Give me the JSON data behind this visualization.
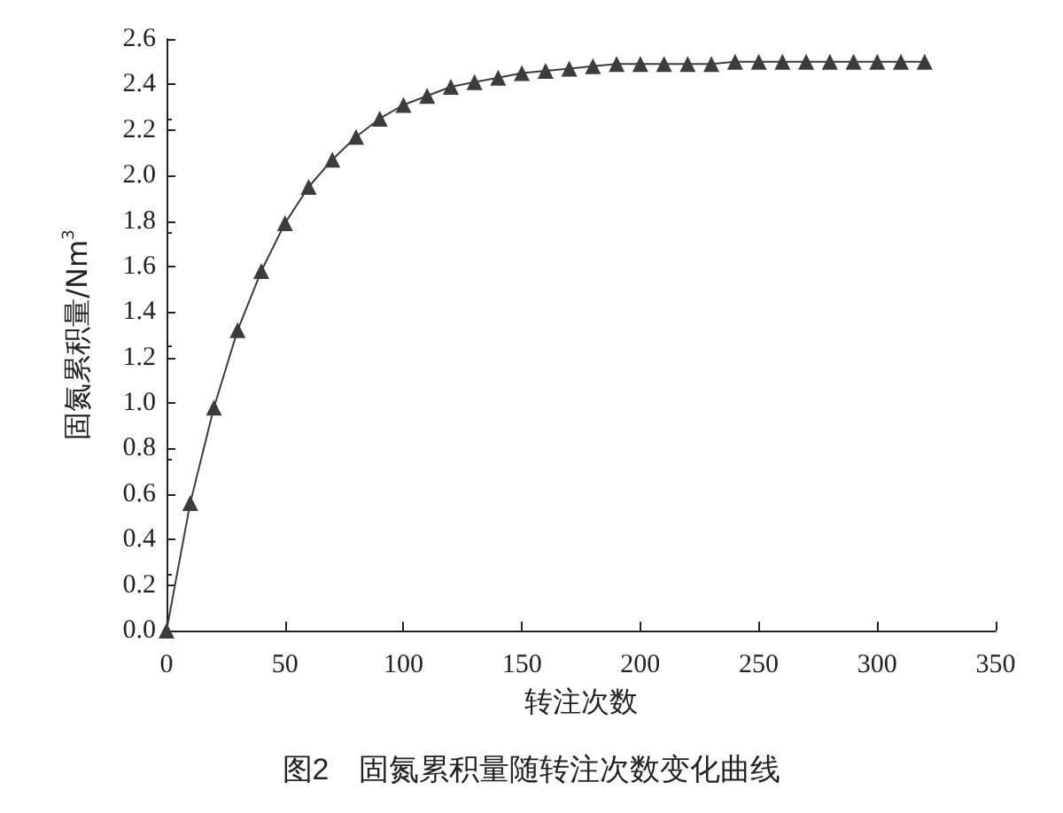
{
  "chart_data": {
    "type": "line",
    "xlabel": "转注次数",
    "ylabel": "固氮累积量/Nm$^{3}$",
    "annotations": [
      "图2　固氮累积量随转注次数变化曲线"
    ],
    "series": [
      {
        "color": "#3c3c3c",
        "x": [
          0,
          10,
          20,
          30,
          40,
          50,
          60,
          70,
          80,
          90,
          100,
          110,
          120,
          130,
          140,
          150,
          160,
          170,
          180,
          190,
          200,
          210,
          220,
          230,
          240,
          250,
          260,
          270,
          280,
          290,
          300,
          310,
          320
        ],
        "values": [
          0,
          0.56,
          0.98,
          1.32,
          1.58,
          1.79,
          1.95,
          2.07,
          2.17,
          2.25,
          2.31,
          2.35,
          2.39,
          2.41,
          2.43,
          2.45,
          2.46,
          2.47,
          2.48,
          2.49,
          2.49,
          2.49,
          2.49,
          2.49,
          2.5,
          2.5,
          2.5,
          2.5,
          2.5,
          2.5,
          2.5,
          2.5,
          2.5
        ]
      }
    ],
    "xlim": [
      0,
      350
    ],
    "xticks": [
      0,
      50,
      100,
      150,
      200,
      250,
      300,
      350
    ],
    "ylim": [
      0,
      2.6
    ],
    "yticks": [
      {
        "value": 0,
        "label": "0.0"
      },
      {
        "value": 0.2,
        "label": "0.2"
      },
      {
        "value": 0.4,
        "label": "0.4"
      },
      {
        "value": 0.6,
        "label": "0.6"
      },
      {
        "value": 0.8,
        "label": "0.8"
      },
      {
        "value": 1.0,
        "label": "1.0"
      },
      {
        "value": 1.2,
        "label": "1.2"
      },
      {
        "value": 1.4,
        "label": "1.4"
      },
      {
        "value": 1.6,
        "label": "1.6"
      },
      {
        "value": 1.8,
        "label": "1.8"
      },
      {
        "value": 2.0,
        "label": "2.0"
      },
      {
        "value": 2.2,
        "label": "2.2"
      },
      {
        "value": 2.4,
        "label": "2.4"
      },
      {
        "value": 2.6,
        "label": "2.6"
      }
    ],
    "grid": false,
    "marker": "triangle",
    "line_style": "solid"
  }
}
